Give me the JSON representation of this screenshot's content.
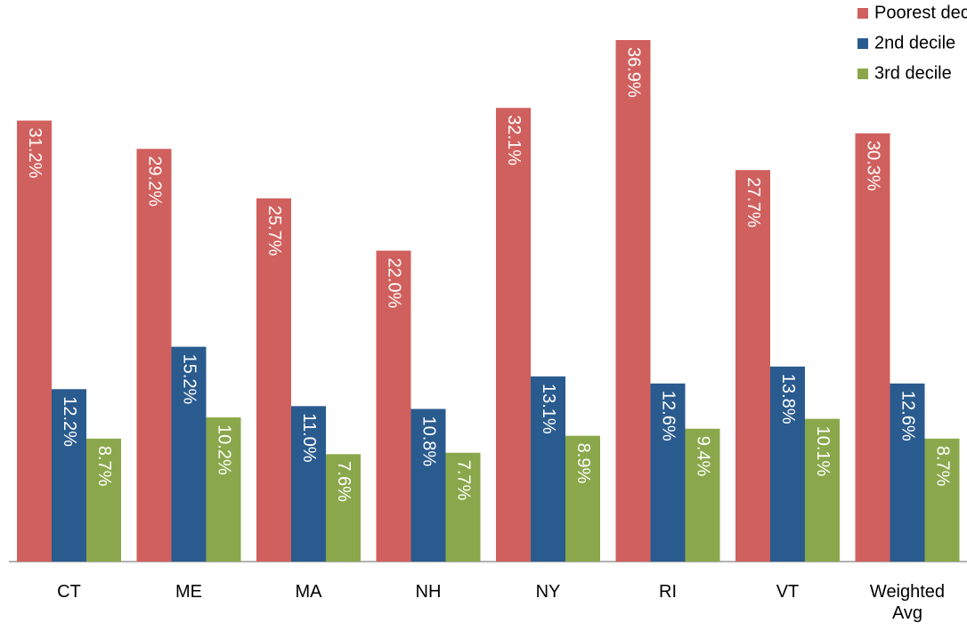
{
  "chart_data": {
    "type": "bar",
    "categories": [
      "CT",
      "ME",
      "MA",
      "NH",
      "NY",
      "RI",
      "VT",
      "Weighted Avg"
    ],
    "series": [
      {
        "name": "Poorest decile",
        "color": "#d0605e",
        "values": [
          31.2,
          29.2,
          25.7,
          22.0,
          32.1,
          36.9,
          27.7,
          30.3
        ],
        "value_labels": [
          "31.2%",
          "29.2%",
          "25.7%",
          "22.0%",
          "32.1%",
          "36.9%",
          "27.7%",
          "30.3%"
        ]
      },
      {
        "name": "2nd decile",
        "color": "#2a5b8f",
        "values": [
          12.2,
          15.2,
          11.0,
          10.8,
          13.1,
          12.6,
          13.8,
          12.6
        ],
        "value_labels": [
          "12.2%",
          "15.2%",
          "11.0%",
          "10.8%",
          "13.1%",
          "12.6%",
          "13.8%",
          "12.6%"
        ]
      },
      {
        "name": "3rd decile",
        "color": "#8aa84b",
        "values": [
          8.7,
          10.2,
          7.6,
          7.7,
          8.9,
          9.4,
          10.1,
          8.7
        ],
        "value_labels": [
          "8.7%",
          "10.2%",
          "7.6%",
          "7.7%",
          "8.9%",
          "9.4%",
          "10.1%",
          "8.7%"
        ]
      }
    ],
    "legend": "top-right"
  }
}
